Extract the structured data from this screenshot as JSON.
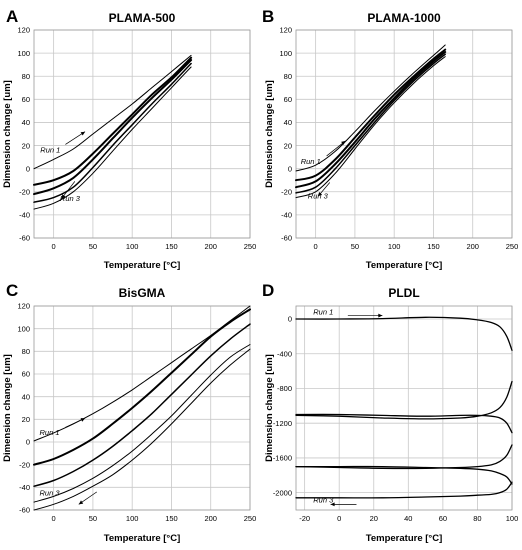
{
  "chart_data": [
    {
      "type": "line",
      "panel": "A",
      "title": "PLAMA-500",
      "xlabel": "Temperature [°C]",
      "ylabel": "Dimension change [um]",
      "xlim": [
        -25,
        250
      ],
      "ylim": [
        -60,
        120
      ],
      "xticks": [
        0,
        50,
        100,
        150,
        200,
        250
      ],
      "yticks": [
        -60,
        -40,
        -20,
        0,
        20,
        40,
        60,
        80,
        100,
        120
      ],
      "grid": true,
      "annotations": [
        {
          "text": "Run 1",
          "x": -17,
          "y": 14,
          "arrow_from": [
            15,
            21
          ],
          "arrow_to": [
            40,
            32
          ]
        },
        {
          "text": "Run 3",
          "x": 8,
          "y": -28,
          "arrow_from": [
            27,
            -11
          ],
          "arrow_to": [
            10,
            -26
          ]
        }
      ],
      "series": [
        {
          "x": [
            -25,
            0,
            25,
            50,
            75,
            100,
            125,
            150,
            175
          ],
          "y": [
            0,
            8,
            17,
            30,
            43,
            56,
            70,
            84,
            98
          ],
          "width": 1.0
        },
        {
          "x": [
            -25,
            0,
            25,
            50,
            75,
            100,
            125,
            150,
            175
          ],
          "y": [
            -14,
            -10,
            -2,
            13,
            30,
            47,
            64,
            79,
            96
          ],
          "width": 2.0
        },
        {
          "x": [
            -25,
            0,
            25,
            50,
            75,
            100,
            125,
            150,
            175
          ],
          "y": [
            -22,
            -17,
            -8,
            8,
            26,
            44,
            61,
            77,
            94
          ],
          "width": 2.0
        },
        {
          "x": [
            -25,
            0,
            25,
            50,
            75,
            100,
            125,
            150,
            175
          ],
          "y": [
            -29,
            -25,
            -16,
            1,
            20,
            38,
            56,
            73,
            91
          ],
          "width": 1.5
        },
        {
          "x": [
            -25,
            0,
            25,
            50,
            75,
            100,
            125,
            150,
            175
          ],
          "y": [
            -35,
            -30,
            -20,
            -4,
            15,
            34,
            52,
            70,
            88
          ],
          "width": 1.0
        }
      ]
    },
    {
      "type": "line",
      "panel": "B",
      "title": "PLAMA-1000",
      "xlabel": "Temperature [°C]",
      "ylabel": "Dimension change [um]",
      "xlim": [
        -25,
        250
      ],
      "ylim": [
        -60,
        120
      ],
      "xticks": [
        0,
        50,
        100,
        150,
        200,
        250
      ],
      "yticks": [
        -60,
        -40,
        -20,
        0,
        20,
        40,
        60,
        80,
        100,
        120
      ],
      "grid": true,
      "annotations": [
        {
          "text": "Run 1",
          "x": -19,
          "y": 4,
          "arrow_from": [
            14,
            11
          ],
          "arrow_to": [
            38,
            24
          ]
        },
        {
          "text": "Run 3",
          "x": -10,
          "y": -26,
          "arrow_from": [
            18,
            -12
          ],
          "arrow_to": [
            3,
            -24
          ]
        }
      ],
      "series": [
        {
          "x": [
            -25,
            0,
            25,
            50,
            75,
            100,
            125,
            150,
            165
          ],
          "y": [
            -2,
            3,
            15,
            32,
            50,
            67,
            83,
            98,
            107
          ],
          "width": 1.0
        },
        {
          "x": [
            -25,
            0,
            25,
            50,
            75,
            100,
            125,
            150,
            165
          ],
          "y": [
            -10,
            -6,
            8,
            27,
            46,
            64,
            80,
            95,
            103
          ],
          "width": 2.0
        },
        {
          "x": [
            -25,
            0,
            25,
            50,
            75,
            100,
            125,
            150,
            165
          ],
          "y": [
            -16,
            -11,
            4,
            23,
            43,
            61,
            78,
            93,
            101
          ],
          "width": 2.0
        },
        {
          "x": [
            -25,
            0,
            25,
            50,
            75,
            100,
            125,
            150,
            165
          ],
          "y": [
            -21,
            -16,
            0,
            20,
            40,
            59,
            76,
            91,
            99
          ],
          "width": 1.5
        },
        {
          "x": [
            -25,
            0,
            25,
            50,
            75,
            100,
            125,
            150,
            165
          ],
          "y": [
            -25,
            -20,
            -4,
            17,
            38,
            57,
            74,
            89,
            97
          ],
          "width": 1.0
        }
      ]
    },
    {
      "type": "line",
      "panel": "C",
      "title": "BisGMA",
      "xlabel": "Temperature [°C]",
      "ylabel": "Dimension change [um]",
      "xlim": [
        -25,
        250
      ],
      "ylim": [
        -60,
        120
      ],
      "xticks": [
        0,
        50,
        100,
        150,
        200,
        250
      ],
      "yticks": [
        -60,
        -40,
        -20,
        0,
        20,
        40,
        60,
        80,
        100,
        120
      ],
      "grid": true,
      "annotations": [
        {
          "text": "Run 1",
          "x": -18,
          "y": 6,
          "arrow_from": [
            15,
            13
          ],
          "arrow_to": [
            40,
            21
          ]
        },
        {
          "text": "Run 3",
          "x": -18,
          "y": -47,
          "arrow_from": [
            55,
            -44
          ],
          "arrow_to": [
            32,
            -55
          ]
        }
      ],
      "series": [
        {
          "x": [
            -25,
            0,
            25,
            50,
            75,
            100,
            125,
            150,
            175,
            200,
            225,
            250
          ],
          "y": [
            1,
            8,
            16,
            25,
            35,
            46,
            58,
            70,
            82,
            94,
            107,
            120
          ],
          "width": 1.0
        },
        {
          "x": [
            -25,
            0,
            25,
            50,
            75,
            100,
            125,
            150,
            175,
            200,
            225,
            250
          ],
          "y": [
            -20,
            -15,
            -7,
            3,
            16,
            30,
            45,
            61,
            77,
            93,
            106,
            117
          ],
          "width": 2.0
        },
        {
          "x": [
            -25,
            0,
            25,
            50,
            75,
            100,
            125,
            150,
            175,
            200,
            225,
            250
          ],
          "y": [
            -39,
            -34,
            -26,
            -16,
            -4,
            10,
            25,
            42,
            59,
            76,
            91,
            104
          ],
          "width": 1.5
        },
        {
          "x": [
            -25,
            0,
            25,
            50,
            75,
            100,
            125,
            150,
            175,
            200,
            225,
            250
          ],
          "y": [
            -53,
            -48,
            -41,
            -32,
            -21,
            -8,
            7,
            23,
            41,
            59,
            75,
            86
          ],
          "width": 1.0
        },
        {
          "x": [
            -25,
            0,
            25,
            50,
            75,
            100,
            125,
            150,
            175,
            200,
            225,
            250
          ],
          "y": [
            -60,
            -55,
            -48,
            -39,
            -29,
            -16,
            -1,
            16,
            34,
            52,
            68,
            82
          ],
          "width": 1.0
        }
      ]
    },
    {
      "type": "line",
      "panel": "D",
      "title": "PLDL",
      "xlabel": "Temperature [°C]",
      "ylabel": "Dimension change [um]",
      "xlim": [
        -25,
        100
      ],
      "ylim": [
        -2200,
        150
      ],
      "xticks": [
        -20,
        0,
        20,
        40,
        60,
        80,
        100
      ],
      "yticks": [
        -2000,
        -1600,
        -1200,
        -800,
        -400,
        0
      ],
      "grid": true,
      "annotations": [
        {
          "text": "Run 1",
          "x": -15,
          "y": 50,
          "arrow_from": [
            5,
            40
          ],
          "arrow_to": [
            25,
            40
          ]
        },
        {
          "text": "Run 3",
          "x": -15,
          "y": -2115,
          "arrow_from": [
            10,
            -2135
          ],
          "arrow_to": [
            -5,
            -2135
          ]
        }
      ],
      "series": [
        {
          "x": [
            -25,
            0,
            25,
            50,
            70,
            80,
            88,
            93,
            97,
            100
          ],
          "y": [
            0,
            0,
            5,
            20,
            10,
            -10,
            -40,
            -90,
            -200,
            -360
          ],
          "width": 1.3
        },
        {
          "x": [
            -25,
            0,
            25,
            50,
            70,
            80,
            88,
            93,
            97,
            100
          ],
          "y": [
            -1110,
            -1120,
            -1140,
            -1150,
            -1140,
            -1120,
            -1080,
            -1020,
            -900,
            -720
          ],
          "width": 1.3
        },
        {
          "x": [
            -25,
            0,
            25,
            50,
            70,
            80,
            88,
            93,
            97,
            100
          ],
          "y": [
            -1100,
            -1100,
            -1110,
            -1120,
            -1110,
            -1110,
            -1120,
            -1140,
            -1200,
            -1310
          ],
          "width": 1.3
        },
        {
          "x": [
            -25,
            0,
            25,
            50,
            70,
            80,
            88,
            93,
            97,
            100
          ],
          "y": [
            -1700,
            -1710,
            -1720,
            -1720,
            -1710,
            -1700,
            -1680,
            -1640,
            -1570,
            -1450
          ],
          "width": 1.3
        },
        {
          "x": [
            -25,
            0,
            25,
            50,
            70,
            80,
            88,
            93,
            97,
            100
          ],
          "y": [
            -1700,
            -1700,
            -1700,
            -1710,
            -1720,
            -1730,
            -1750,
            -1780,
            -1820,
            -1900
          ],
          "width": 1.3
        },
        {
          "x": [
            -25,
            0,
            25,
            50,
            70,
            80,
            88,
            93,
            97,
            100
          ],
          "y": [
            -2060,
            -2060,
            -2060,
            -2050,
            -2040,
            -2030,
            -2020,
            -2000,
            -1960,
            -1880
          ],
          "width": 1.3
        }
      ]
    }
  ]
}
